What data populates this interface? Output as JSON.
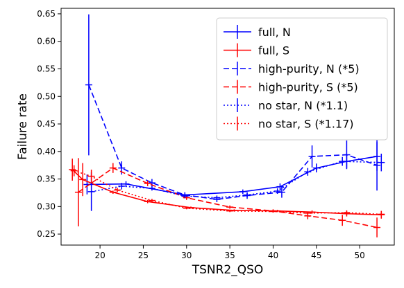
{
  "chart_data": {
    "type": "line",
    "title": "",
    "xlabel": "TSNR2_QSO",
    "ylabel": "Failure rate",
    "xlim": [
      15.5,
      54.0
    ],
    "ylim": [
      0.23,
      0.66
    ],
    "xticks": [
      20,
      25,
      30,
      35,
      40,
      45,
      50
    ],
    "xtick_labels": [
      "20",
      "25",
      "30",
      "35",
      "40",
      "45",
      "50"
    ],
    "yticks": [
      0.25,
      0.3,
      0.35,
      0.4,
      0.45,
      0.5,
      0.55,
      0.6,
      0.65
    ],
    "ytick_labels": [
      "0.25",
      "0.30",
      "0.35",
      "0.40",
      "0.45",
      "0.50",
      "0.55",
      "0.60",
      "0.65"
    ],
    "grid": false,
    "legend_position": "top-right",
    "series": [
      {
        "name": "full, N",
        "color": "#0000ff",
        "dash": "solid",
        "x": [
          18.5,
          23.0,
          29.8,
          36.5,
          40.8,
          45.0,
          48.5,
          52.0
        ],
        "y": [
          0.34,
          0.341,
          0.321,
          0.327,
          0.336,
          0.37,
          0.382,
          0.391
        ],
        "yerr": [
          0.018,
          0.005,
          0.004,
          0.004,
          0.006,
          0.008,
          0.012,
          0.026
        ]
      },
      {
        "name": "full, S",
        "color": "#ff0000",
        "dash": "solid",
        "x": [
          16.8,
          18.0,
          21.5,
          25.5,
          30.5,
          35.5,
          40.5,
          44.5,
          48.5,
          52.5
        ],
        "y": [
          0.367,
          0.349,
          0.326,
          0.309,
          0.298,
          0.293,
          0.292,
          0.29,
          0.287,
          0.285
        ],
        "yerr": [
          0.02,
          0.03,
          0.003,
          0.003,
          0.002,
          0.002,
          0.002,
          0.003,
          0.005,
          0.007
        ]
      },
      {
        "name": "high-purity, N (*5)",
        "color": "#0000ff",
        "dash": "8,4",
        "x": [
          18.7,
          22.5,
          26.0,
          29.8,
          33.5,
          37.0,
          41.0,
          44.5,
          48.5,
          52.0
        ],
        "y": [
          0.521,
          0.37,
          0.343,
          0.321,
          0.313,
          0.32,
          0.326,
          0.391,
          0.394,
          0.375
        ],
        "yerr": [
          0.128,
          0.012,
          0.007,
          0.005,
          0.005,
          0.006,
          0.01,
          0.02,
          0.026,
          0.046
        ]
      },
      {
        "name": "high-purity, S (*5)",
        "color": "#ff0000",
        "dash": "8,4",
        "x": [
          17.5,
          21.5,
          25.5,
          30.0,
          35.0,
          40.0,
          44.0,
          48.0,
          52.0
        ],
        "y": [
          0.326,
          0.37,
          0.342,
          0.316,
          0.299,
          0.292,
          0.283,
          0.275,
          0.262
        ],
        "yerr": [
          0.062,
          0.009,
          0.005,
          0.004,
          0.003,
          0.003,
          0.006,
          0.01,
          0.018
        ]
      },
      {
        "name": "no star, N (*1.1)",
        "color": "#0000ff",
        "dash": "2,3",
        "x": [
          19.0,
          22.5,
          26.0,
          29.8,
          33.5,
          37.0,
          40.5,
          44.0,
          48.0,
          52.5
        ],
        "y": [
          0.327,
          0.337,
          0.333,
          0.319,
          0.316,
          0.321,
          0.328,
          0.363,
          0.382,
          0.38
        ],
        "yerr": [
          0.035,
          0.006,
          0.004,
          0.004,
          0.004,
          0.004,
          0.005,
          0.007,
          0.008,
          0.016
        ]
      },
      {
        "name": "no star, S (*1.17)",
        "color": "#ff0000",
        "dash": "2,3",
        "x": [
          17.0,
          19.0,
          22.0,
          26.0,
          30.0,
          35.0,
          40.0,
          44.0,
          48.5,
          52.5
        ],
        "y": [
          0.365,
          0.355,
          0.33,
          0.311,
          0.297,
          0.292,
          0.291,
          0.288,
          0.289,
          0.286
        ],
        "yerr": [
          0.01,
          0.012,
          0.004,
          0.003,
          0.002,
          0.002,
          0.002,
          0.003,
          0.004,
          0.006
        ]
      }
    ]
  }
}
